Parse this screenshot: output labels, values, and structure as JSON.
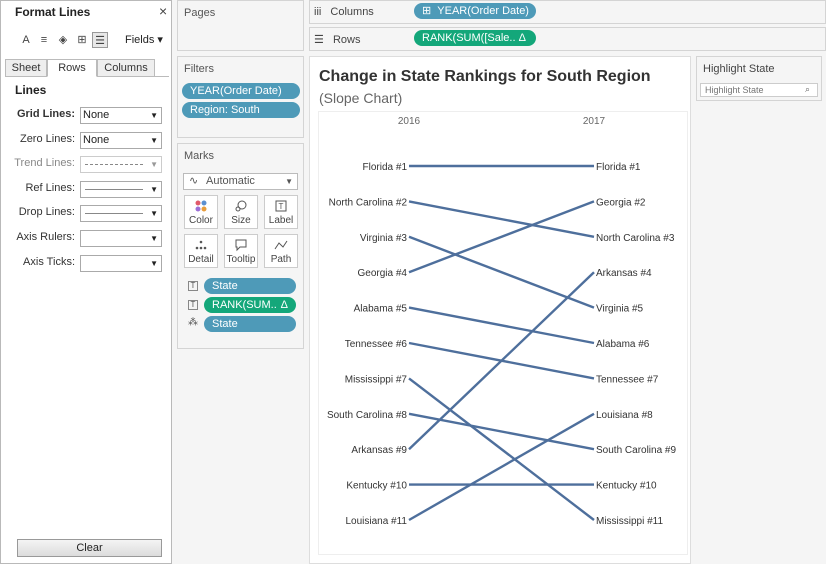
{
  "format_pane": {
    "title": "Format Lines",
    "close": "×",
    "toolbar_icons": [
      "A",
      "≡",
      "◈",
      "⊞",
      "☰"
    ],
    "fields_label": "Fields ▾",
    "tabs": [
      "Sheet",
      "Rows",
      "Columns"
    ],
    "active_tab": "Rows",
    "section_header": "Lines",
    "rows": [
      {
        "label": "Grid Lines:",
        "value": "None",
        "kind": "text",
        "bold": true
      },
      {
        "label": "Zero Lines:",
        "value": "None",
        "kind": "text"
      },
      {
        "label": "Trend Lines:",
        "value": "",
        "kind": "dashed",
        "disabled": true
      },
      {
        "label": "Ref Lines:",
        "value": "",
        "kind": "solid"
      },
      {
        "label": "Drop Lines:",
        "value": "",
        "kind": "solid"
      },
      {
        "label": "Axis Rulers:",
        "value": "",
        "kind": "blank"
      },
      {
        "label": "Axis Ticks:",
        "value": "",
        "kind": "blank"
      }
    ],
    "clear_label": "Clear"
  },
  "pages_card": {
    "title": "Pages"
  },
  "filters_card": {
    "title": "Filters",
    "pills": [
      "YEAR(Order Date)",
      "Region: South"
    ]
  },
  "marks_card": {
    "title": "Marks",
    "mark_type": "Automatic",
    "buttons": [
      {
        "label": "Color",
        "icon": "dots-icon"
      },
      {
        "label": "Size",
        "icon": "size-icon"
      },
      {
        "label": "Label",
        "icon": "text-icon"
      },
      {
        "label": "Detail",
        "icon": "detail-icon"
      },
      {
        "label": "Tooltip",
        "icon": "tooltip-icon"
      },
      {
        "label": "Path",
        "icon": "path-icon"
      }
    ],
    "fields": [
      {
        "icon": "T",
        "name": "State",
        "color": "blue"
      },
      {
        "icon": "T",
        "name": "RANK(SUM..",
        "delta": "Δ",
        "color": "green"
      },
      {
        "icon": "⁂",
        "name": "State",
        "color": "blue"
      }
    ]
  },
  "columns_shelf": {
    "label": "Columns",
    "icon": "iii",
    "pill": "YEAR(Order Date)",
    "pill_prefix": "⊞"
  },
  "rows_shelf": {
    "label": "Rows",
    "icon": "☰",
    "pill": "RANK(SUM([Sale..",
    "pill_delta": "Δ"
  },
  "highlight": {
    "title": "Highlight State",
    "placeholder": "Highlight State"
  },
  "chart_data": {
    "type": "line",
    "title": "Change in State Rankings for South Region",
    "subtitle": "(Slope Chart)",
    "x": [
      "2016",
      "2017"
    ],
    "ylim": [
      1,
      11
    ],
    "grid": false,
    "series": [
      {
        "name": "Florida",
        "values": [
          1,
          1
        ]
      },
      {
        "name": "North Carolina",
        "values": [
          2,
          3
        ]
      },
      {
        "name": "Virginia",
        "values": [
          3,
          5
        ]
      },
      {
        "name": "Georgia",
        "values": [
          4,
          2
        ]
      },
      {
        "name": "Alabama",
        "values": [
          5,
          6
        ]
      },
      {
        "name": "Tennessee",
        "values": [
          6,
          7
        ]
      },
      {
        "name": "Mississippi",
        "values": [
          7,
          11
        ]
      },
      {
        "name": "South Carolina",
        "values": [
          8,
          9
        ]
      },
      {
        "name": "Arkansas",
        "values": [
          9,
          4
        ]
      },
      {
        "name": "Kentucky",
        "values": [
          10,
          10
        ]
      },
      {
        "name": "Louisiana",
        "values": [
          11,
          8
        ]
      }
    ],
    "line_color": "#4e6f9c"
  }
}
